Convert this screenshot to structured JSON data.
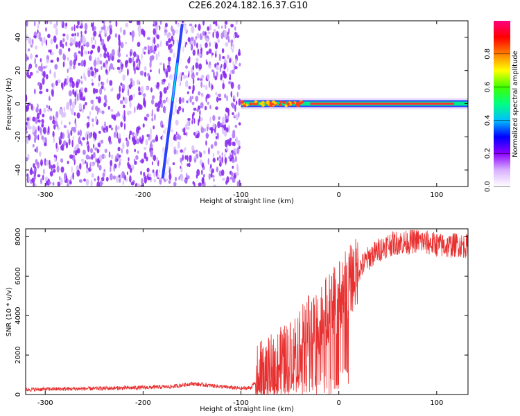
{
  "title": "C2E6.2024.182.16.37.G10",
  "colors": {
    "signal": "#e83030",
    "frame": "#000000",
    "bg": "#ffffff"
  },
  "chart_data": [
    {
      "type": "heatmap",
      "xlabel": "Height of straight line (km)",
      "ylabel": "Frequency (Hz)",
      "xlim": [
        -320,
        132
      ],
      "ylim": [
        -50,
        50
      ],
      "xticks": [
        -300,
        -200,
        -100,
        0,
        100
      ],
      "yticks": [
        -40,
        -20,
        0,
        20,
        40
      ],
      "grid": false,
      "colorbar": {
        "label": "Normalized spectral amplitude",
        "range": [
          0,
          1
        ],
        "ticks": [
          "0.0",
          "0.2",
          "0.4",
          "0.6",
          "0.8"
        ],
        "colormap": [
          "#ffffff",
          "#d8b0ff",
          "#8b00ff",
          "#0000ff",
          "#00c0ff",
          "#00ff80",
          "#40ff00",
          "#ffff00",
          "#ff8000",
          "#ff0000",
          "#ff0080"
        ]
      },
      "noise_region_x": [
        -320,
        -101
      ],
      "signal_track": {
        "x": [
          -100,
          132
        ],
        "freq": 0
      },
      "sweep_trace": {
        "x": [
          -180,
          -160
        ],
        "freq": [
          -45,
          48
        ]
      }
    },
    {
      "type": "line",
      "xlabel": "Height of straight line (km)",
      "ylabel": "SNR (10 * v/v)",
      "xlim": [
        -320,
        132
      ],
      "ylim": [
        0,
        8400
      ],
      "xticks": [
        -300,
        -200,
        -100,
        0,
        100
      ],
      "yticks": [
        0,
        2000,
        4000,
        6000,
        8000
      ],
      "grid": false,
      "series": [
        {
          "color": "#e83030",
          "x": [
            -320,
            -300,
            -250,
            -200,
            -170,
            -150,
            -130,
            -110,
            -100,
            -90,
            -80,
            -70,
            -60,
            -50,
            -40,
            -30,
            -20,
            -10,
            0,
            10,
            20,
            30,
            40,
            50,
            60,
            70,
            80,
            90,
            100,
            110,
            120,
            132
          ],
          "y": [
            250,
            270,
            300,
            350,
            400,
            550,
            450,
            350,
            300,
            350,
            900,
            1200,
            1600,
            2000,
            2800,
            3300,
            3800,
            4300,
            5000,
            5700,
            6300,
            6900,
            7300,
            7600,
            7700,
            7700,
            7800,
            7700,
            7600,
            7500,
            7600,
            7500
          ]
        }
      ]
    }
  ]
}
